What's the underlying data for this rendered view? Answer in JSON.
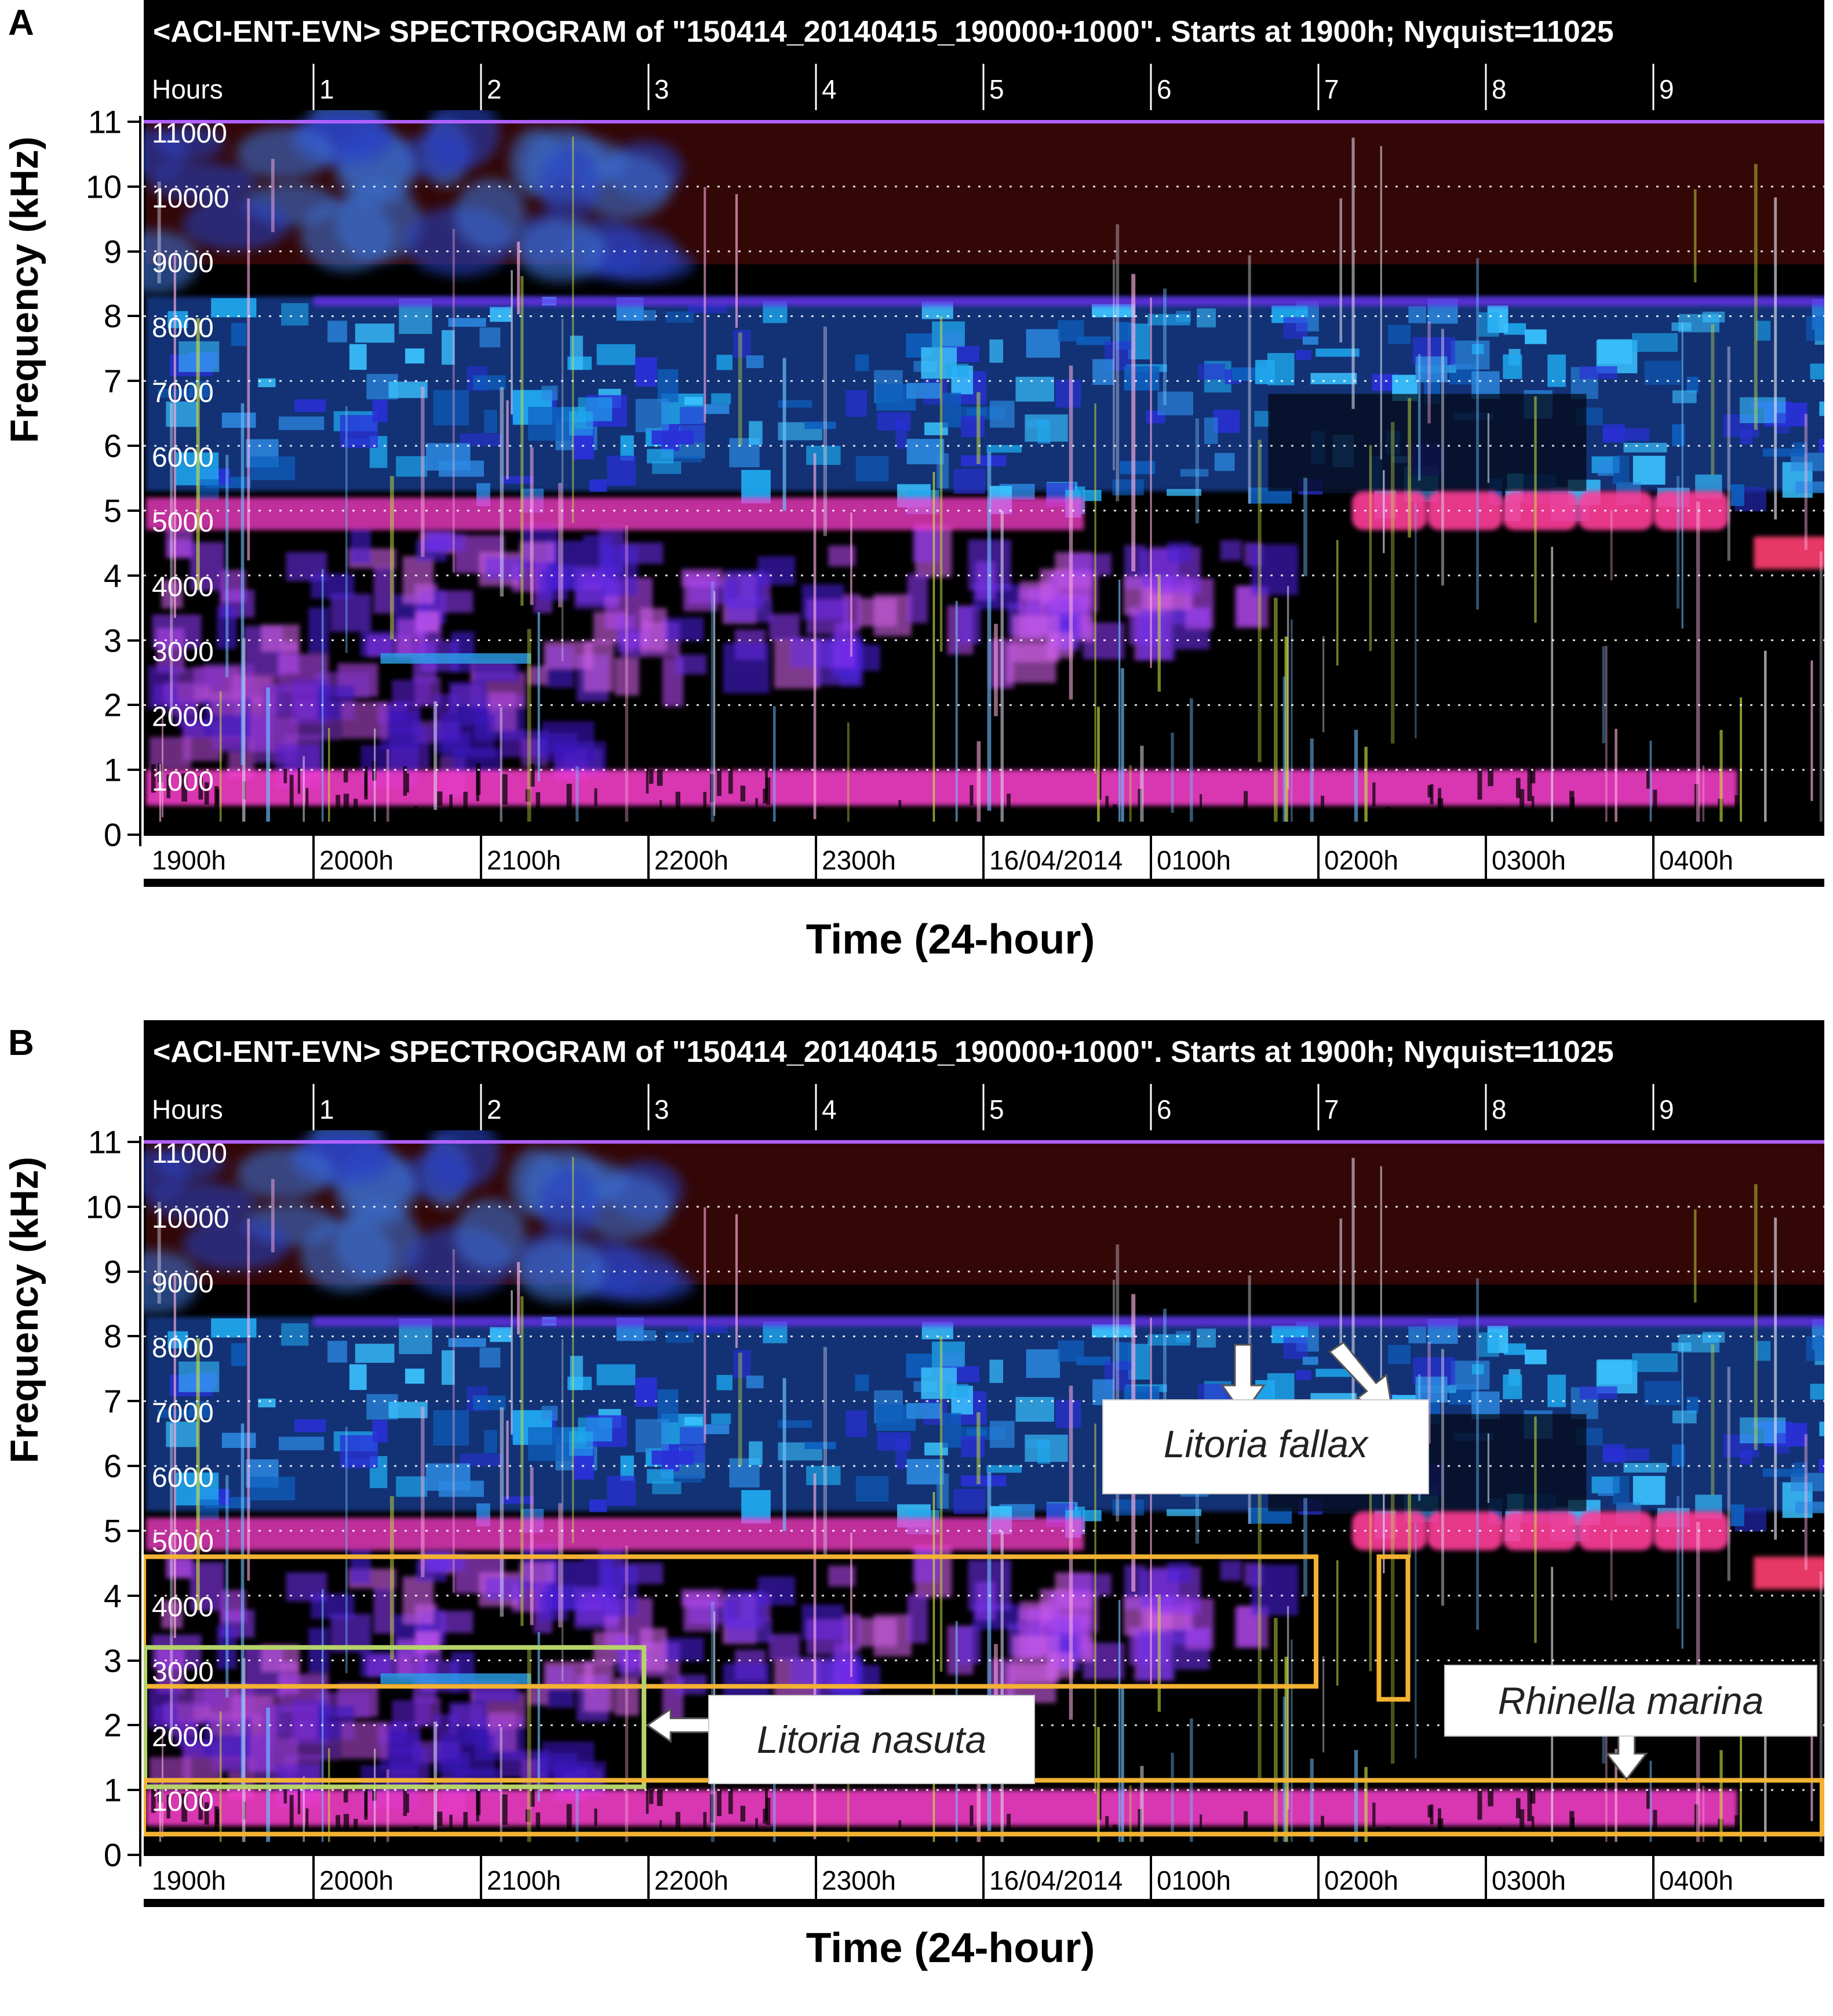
{
  "colors": {
    "highlight_yellow": "#f2b233",
    "highlight_green": "#b5d36a",
    "spectrogram_bg": "#000000",
    "title_bar_bg": "#000000",
    "magenta": "#ff3fd0",
    "cyan": "#2ab4f2",
    "blue": "#3030e0"
  },
  "chart_data": [
    {
      "panel": "A",
      "type": "heatmap",
      "title": "<ACI-ENT-EVN> SPECTROGRAM  of \"150414_20140415_190000+1000\".   Starts at 1900h; Nyquist=11025",
      "xlabel": "Time (24-hour)",
      "ylabel": "Frequency (kHz)",
      "ylim": [
        0,
        11
      ],
      "y_ticks": [
        "0",
        "1",
        "2",
        "3",
        "4",
        "5",
        "6",
        "7",
        "8",
        "9",
        "10",
        "11"
      ],
      "hour_ticks": [
        "Hours",
        "1",
        "2",
        "3",
        "4",
        "5",
        "6",
        "7",
        "8",
        "9"
      ],
      "time_ticks": [
        "1900h",
        "2000h",
        "2100h",
        "2200h",
        "2300h",
        "16/04/2014",
        "0100h",
        "0200h",
        "0300h",
        "0400h"
      ],
      "freq_labels": [
        "1000",
        "2000",
        "3000",
        "4000",
        "5000",
        "6000",
        "7000",
        "8000",
        "9000",
        "10000",
        "11000"
      ],
      "grid": "dotted horizontal at each kHz"
    },
    {
      "panel": "B",
      "type": "heatmap",
      "title": "<ACI-ENT-EVN> SPECTROGRAM  of \"150414_20140415_190000+1000\".   Starts at 1900h; Nyquist=11025",
      "xlabel": "Time (24-hour)",
      "ylabel": "Frequency (kHz)",
      "ylim": [
        0,
        11
      ],
      "y_ticks": [
        "0",
        "1",
        "2",
        "3",
        "4",
        "5",
        "6",
        "7",
        "8",
        "9",
        "10",
        "11"
      ],
      "hour_ticks": [
        "Hours",
        "1",
        "2",
        "3",
        "4",
        "5",
        "6",
        "7",
        "8",
        "9"
      ],
      "time_ticks": [
        "1900h",
        "2000h",
        "2100h",
        "2200h",
        "2300h",
        "16/04/2014",
        "0100h",
        "0200h",
        "0300h",
        "0400h"
      ],
      "freq_labels": [
        "1000",
        "2000",
        "3000",
        "4000",
        "5000",
        "6000",
        "7000",
        "8000",
        "9000",
        "10000",
        "11000"
      ],
      "grid": "dotted horizontal at each kHz",
      "annotations": [
        {
          "label": "Litoria fallax",
          "boxes_khz": [
            [
              2.6,
              4.6
            ],
            [
              2.4,
              4.6
            ]
          ],
          "hours": [
            [
              0,
              7.0
            ],
            [
              7.5,
              7.7
            ]
          ]
        },
        {
          "label": "Litoria nasuta",
          "boxes_khz": [
            [
              1.1,
              3.2
            ]
          ],
          "hours": [
            [
              0,
              3.0
            ]
          ]
        },
        {
          "label": "Rhinella marina",
          "boxes_khz": [
            [
              0.3,
              1.2
            ]
          ],
          "hours": [
            [
              0,
              10.0
            ]
          ]
        }
      ]
    }
  ],
  "panels": [
    {
      "letter": "A",
      "y_axis_title": "Frequency (kHz)",
      "x_axis_title": "Time (24-hour)"
    },
    {
      "letter": "B",
      "y_axis_title": "Frequency (kHz)",
      "x_axis_title": "Time (24-hour)",
      "labels": {
        "fallax": "Litoria fallax",
        "nasuta": "Litoria nasuta",
        "marina": "Rhinella marina"
      }
    }
  ]
}
